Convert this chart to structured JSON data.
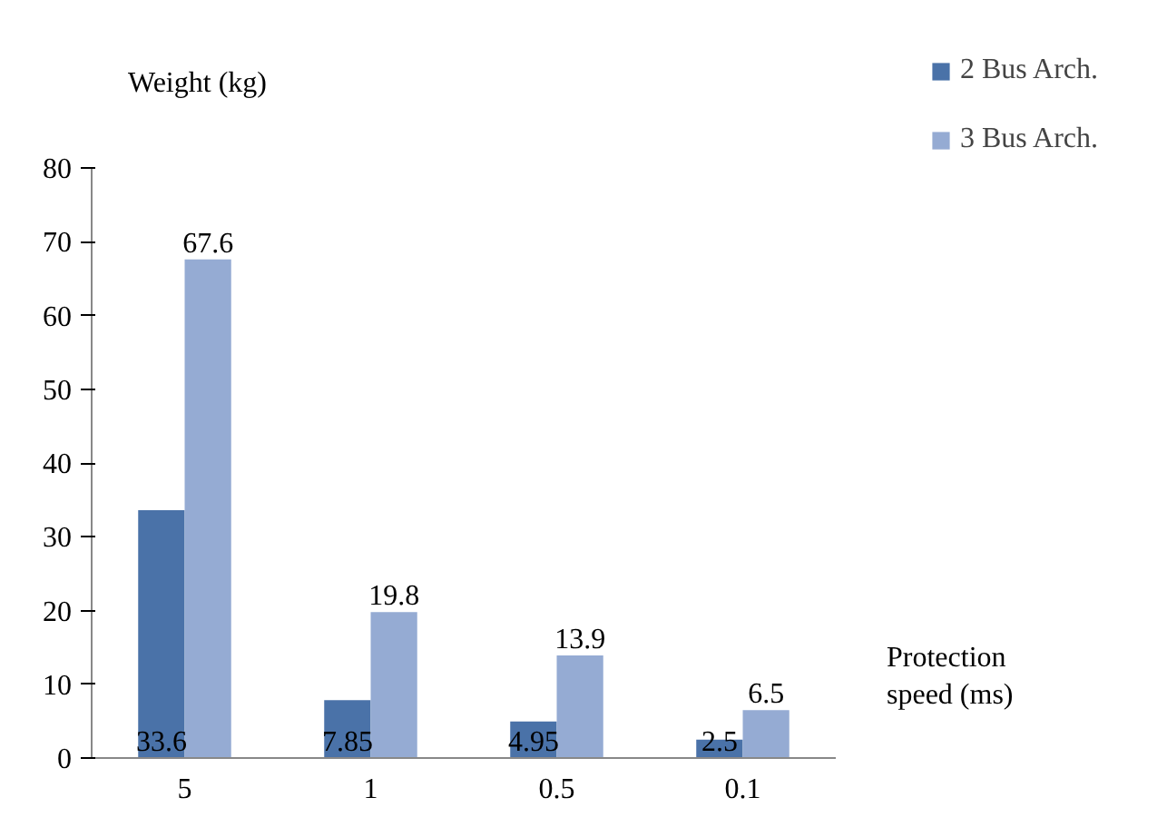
{
  "chart_data": {
    "type": "bar",
    "ylabel": "Weight (kg)",
    "xlabel": "Protection speed (ms)",
    "categories": [
      "5",
      "1",
      "0.5",
      "0.1"
    ],
    "series": [
      {
        "name": "2 Bus Arch.",
        "color": "#4a72a8",
        "values": [
          33.6,
          7.85,
          4.95,
          2.5
        ]
      },
      {
        "name": "3 Bus Arch.",
        "color": "#95abd3",
        "values": [
          67.6,
          19.8,
          13.9,
          6.5
        ]
      }
    ],
    "ylim": [
      0,
      80
    ],
    "yticks": [
      0,
      10,
      20,
      30,
      40,
      50,
      60,
      70,
      80
    ],
    "data_labels": true,
    "grid": false,
    "legend": "right"
  }
}
